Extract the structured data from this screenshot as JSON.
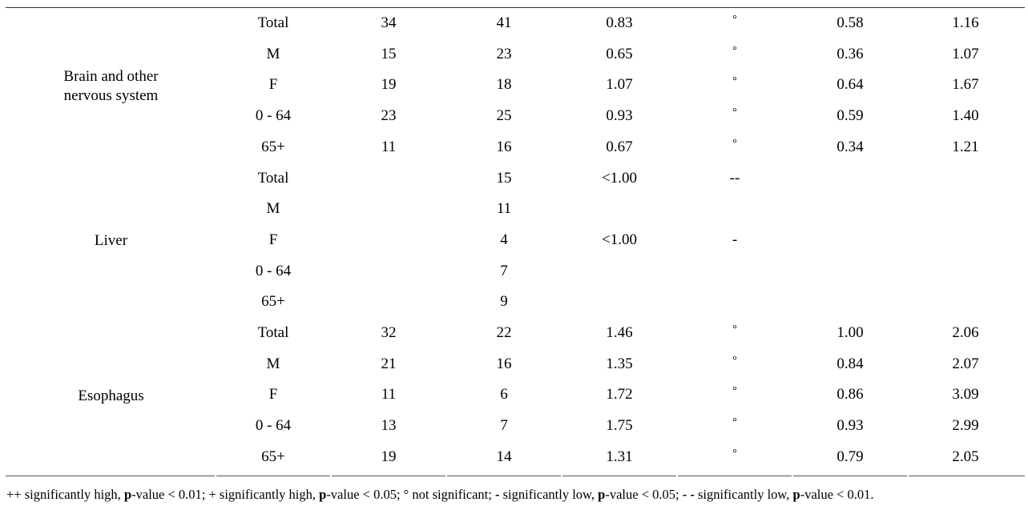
{
  "groups": [
    {
      "label_lines": [
        "Brain and other",
        "nervous system"
      ],
      "rows": [
        [
          "Total",
          "34",
          "41",
          "0.83",
          "°",
          "0.58",
          "1.16"
        ],
        [
          "M",
          "15",
          "23",
          "0.65",
          "°",
          "0.36",
          "1.07"
        ],
        [
          "F",
          "19",
          "18",
          "1.07",
          "°",
          "0.64",
          "1.67"
        ],
        [
          "0 - 64",
          "23",
          "25",
          "0.93",
          "°",
          "0.59",
          "1.40"
        ],
        [
          "65+",
          "11",
          "16",
          "0.67",
          "°",
          "0.34",
          "1.21"
        ]
      ]
    },
    {
      "label_lines": [
        "Liver"
      ],
      "rows": [
        [
          "Total",
          "",
          "15",
          "<1.00",
          "--",
          "",
          ""
        ],
        [
          "M",
          "",
          "11",
          "",
          "",
          "",
          ""
        ],
        [
          "F",
          "",
          "4",
          "<1.00",
          "-",
          "",
          ""
        ],
        [
          "0 - 64",
          "",
          "7",
          "",
          "",
          "",
          ""
        ],
        [
          "65+",
          "",
          "9",
          "",
          "",
          "",
          ""
        ]
      ]
    },
    {
      "label_lines": [
        "Esophagus"
      ],
      "rows": [
        [
          "Total",
          "32",
          "22",
          "1.46",
          "°",
          "1.00",
          "2.06"
        ],
        [
          "M",
          "21",
          "16",
          "1.35",
          "°",
          "0.84",
          "2.07"
        ],
        [
          "F",
          "11",
          "6",
          "1.72",
          "°",
          "0.86",
          "3.09"
        ],
        [
          "0 - 64",
          "13",
          "7",
          "1.75",
          "°",
          "0.93",
          "2.99"
        ],
        [
          "65+",
          "19",
          "14",
          "1.31",
          "°",
          "0.79",
          "2.05"
        ]
      ]
    }
  ],
  "footnote": {
    "parts": [
      {
        "t": "++ significantly high, ",
        "b": false
      },
      {
        "t": "p",
        "b": true
      },
      {
        "t": "-value < 0.01; + significantly high, ",
        "b": false
      },
      {
        "t": "p",
        "b": true
      },
      {
        "t": "-value < 0.05; ° not significant; ",
        "b": false
      },
      {
        "t": "-",
        "b": true
      },
      {
        "t": " significantly low, ",
        "b": false
      },
      {
        "t": "p",
        "b": true
      },
      {
        "t": "-value < 0.05; ",
        "b": false
      },
      {
        "t": "- -",
        "b": true
      },
      {
        "t": " significantly low, ",
        "b": false
      },
      {
        "t": "p",
        "b": true
      },
      {
        "t": "-value < 0.01.",
        "b": false
      }
    ]
  }
}
